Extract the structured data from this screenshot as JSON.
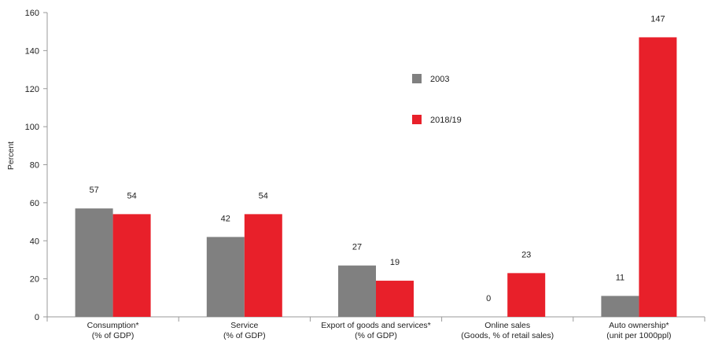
{
  "chart_data": {
    "type": "bar",
    "ylabel": "Percent",
    "ylim": [
      0,
      160
    ],
    "yticks": [
      "0",
      "20",
      "40",
      "60",
      "80",
      "100",
      "120",
      "140",
      "160"
    ],
    "categories": [
      [
        "Consumption*",
        "(% of GDP)"
      ],
      [
        "Service",
        "(% of GDP)"
      ],
      [
        "Export of goods and services*",
        "(% of GDP)"
      ],
      [
        "Online sales",
        "(Goods, % of retail sales)"
      ],
      [
        "Auto ownership*",
        "(unit per 1000ppl)"
      ]
    ],
    "series": [
      {
        "name": "2003",
        "values": [
          57,
          42,
          27,
          0,
          11
        ],
        "labels": [
          "57",
          "42",
          "27",
          "0",
          "11"
        ],
        "color": "#808080"
      },
      {
        "name": "2018/19",
        "values": [
          54,
          54,
          19,
          23,
          147
        ],
        "labels": [
          "54",
          "54",
          "19",
          "23",
          "147"
        ],
        "color": "#e8202a"
      }
    ],
    "grid": false,
    "legend_position": "inside-upper-center"
  }
}
